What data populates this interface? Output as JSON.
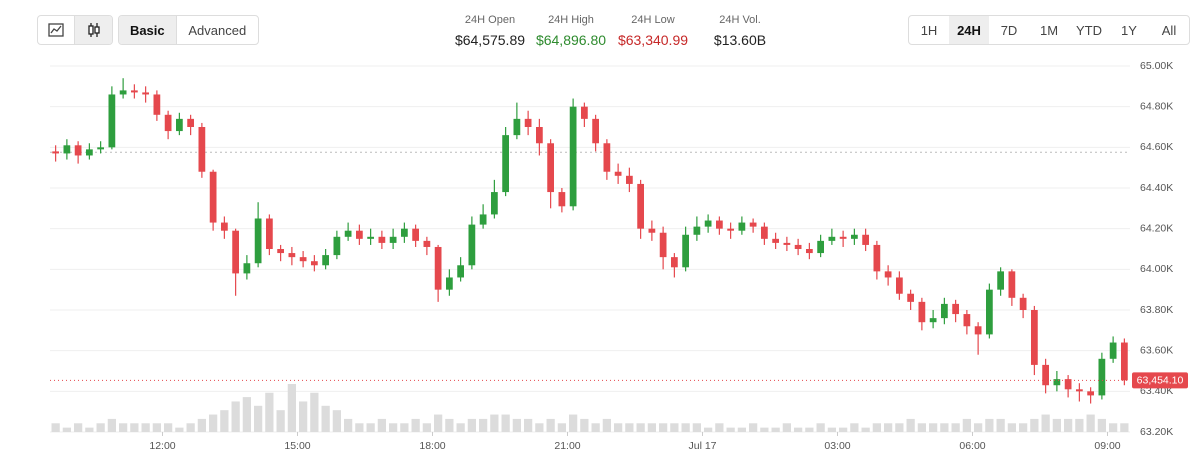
{
  "tabs": {
    "items": [
      "Basic",
      "Advanced"
    ],
    "active": 0
  },
  "stats": [
    {
      "label": "24H Open",
      "value": "$64,575.89"
    },
    {
      "label": "24H High",
      "value": "$64,896.80",
      "color": "#2e8b2e"
    },
    {
      "label": "24H Low",
      "value": "$63,340.99",
      "color": "#c62828"
    },
    {
      "label": "24H Vol.",
      "value": "$13.60B"
    }
  ],
  "timeframes": {
    "items": [
      "1H",
      "24H",
      "7D",
      "1M",
      "YTD",
      "1Y",
      "All"
    ],
    "active": 1
  },
  "chart_data": {
    "type": "candlestick",
    "open": [
      64580,
      64570,
      64610,
      64560,
      64590,
      64600,
      64860,
      64880,
      64870,
      64860,
      64760,
      64680,
      64740,
      64700,
      64480,
      64230,
      64190,
      63980,
      64030,
      64250,
      64100,
      64080,
      64060,
      64040,
      64020,
      64070,
      64160,
      64190,
      64150,
      64160,
      64130,
      64160,
      64200,
      64140,
      64110,
      63900,
      63960,
      64020,
      64220,
      64270,
      64380,
      64660,
      64740,
      64700,
      64620,
      64380,
      64310,
      64800,
      64740,
      64620,
      64480,
      64460,
      64420,
      64200,
      64180,
      64060,
      64010,
      64170,
      64210,
      64240,
      64200,
      64190,
      64230,
      64210,
      64150,
      64130,
      64120,
      64100,
      64080,
      64140,
      64160,
      64150,
      64170,
      64120,
      63990,
      63960,
      63880,
      63840,
      63740,
      63760,
      63830,
      63780,
      63720,
      63680,
      63900,
      63990,
      63860,
      63800,
      63530,
      63430,
      63460,
      63410,
      63400,
      63380,
      63560,
      63640
    ],
    "high": [
      64610,
      64640,
      64630,
      64620,
      64630,
      64900,
      64940,
      64910,
      64900,
      64880,
      64780,
      64770,
      64760,
      64720,
      64490,
      64260,
      64200,
      64070,
      64330,
      64270,
      64120,
      64110,
      64090,
      64070,
      64100,
      64190,
      64230,
      64220,
      64200,
      64190,
      64200,
      64230,
      64220,
      64160,
      64120,
      64000,
      64060,
      64260,
      64320,
      64440,
      64700,
      64820,
      64780,
      64740,
      64640,
      64400,
      64840,
      64820,
      64760,
      64640,
      64520,
      64500,
      64440,
      64240,
      64210,
      64080,
      64210,
      64260,
      64270,
      64260,
      64230,
      64260,
      64250,
      64230,
      64180,
      64160,
      64150,
      64130,
      64170,
      64200,
      64190,
      64200,
      64200,
      64140,
      64020,
      63990,
      63900,
      63860,
      63800,
      63860,
      63850,
      63800,
      63740,
      63930,
      64010,
      64000,
      63880,
      63820,
      63560,
      63500,
      63480,
      63440,
      63420,
      63590,
      63670,
      63660
    ],
    "low": [
      64530,
      64540,
      64520,
      64540,
      64570,
      64590,
      64840,
      64840,
      64820,
      64730,
      64640,
      64660,
      64660,
      64450,
      64190,
      64150,
      63870,
      63950,
      64010,
      64070,
      64040,
      64020,
      64010,
      63990,
      64000,
      64050,
      64140,
      64120,
      64120,
      64100,
      64100,
      64130,
      64110,
      64070,
      63840,
      63870,
      63940,
      64000,
      64200,
      64250,
      64360,
      64640,
      64660,
      64560,
      64300,
      64280,
      64290,
      64700,
      64580,
      64440,
      64420,
      64380,
      64150,
      64140,
      64000,
      63960,
      63990,
      64140,
      64180,
      64170,
      64150,
      64170,
      64180,
      64120,
      64100,
      64090,
      64070,
      64050,
      64060,
      64120,
      64110,
      64120,
      64090,
      63950,
      63920,
      63850,
      63800,
      63700,
      63710,
      63730,
      63740,
      63680,
      63580,
      63660,
      63870,
      63820,
      63760,
      63480,
      63390,
      63400,
      63370,
      63350,
      63340,
      63360,
      63540,
      63430
    ],
    "close": [
      64570,
      64610,
      64560,
      64590,
      64600,
      64860,
      64880,
      64870,
      64860,
      64760,
      64680,
      64740,
      64700,
      64480,
      64230,
      64190,
      63980,
      64030,
      64250,
      64100,
      64080,
      64060,
      64040,
      64020,
      64070,
      64160,
      64190,
      64150,
      64160,
      64130,
      64160,
      64200,
      64140,
      64110,
      63900,
      63960,
      64020,
      64220,
      64270,
      64380,
      64660,
      64740,
      64700,
      64620,
      64380,
      64310,
      64800,
      64740,
      64620,
      64480,
      64460,
      64420,
      64200,
      64180,
      64060,
      64010,
      64170,
      64210,
      64240,
      64200,
      64190,
      64230,
      64210,
      64150,
      64130,
      64120,
      64100,
      64080,
      64140,
      64160,
      64150,
      64170,
      64120,
      63990,
      63960,
      63880,
      63840,
      63740,
      63760,
      63830,
      63780,
      63720,
      63680,
      63900,
      63990,
      63860,
      63800,
      63530,
      63430,
      63460,
      63410,
      63400,
      63380,
      63560,
      63640,
      63454.1
    ],
    "volume": [
      2,
      1,
      2,
      1,
      2,
      3,
      2,
      2,
      2,
      2,
      2,
      1,
      2,
      3,
      4,
      5,
      7,
      8,
      6,
      9,
      5,
      11,
      7,
      9,
      6,
      5,
      3,
      2,
      2,
      3,
      2,
      2,
      3,
      2,
      4,
      3,
      2,
      3,
      3,
      4,
      4,
      3,
      3,
      2,
      3,
      2,
      4,
      3,
      2,
      3,
      2,
      2,
      2,
      2,
      2,
      2,
      2,
      2,
      1,
      2,
      1,
      1,
      2,
      1,
      1,
      2,
      1,
      1,
      2,
      1,
      1,
      2,
      1,
      2,
      2,
      2,
      3,
      2,
      2,
      2,
      2,
      3,
      2,
      3,
      3,
      2,
      2,
      3,
      4,
      3,
      3,
      3,
      4,
      3,
      2,
      2
    ],
    "up_color": "#2e9e3e",
    "down_color": "#e5484d",
    "volume_color": "#dcdcdc",
    "open_line": 64575.89,
    "last_price": {
      "value": 63454.1,
      "label": "63,454.10"
    },
    "xlim": [
      0,
      96
    ],
    "xticks": [
      {
        "value": 10,
        "label": "12:00"
      },
      {
        "value": 22,
        "label": "15:00"
      },
      {
        "value": 34,
        "label": "18:00"
      },
      {
        "value": 46,
        "label": "21:00"
      },
      {
        "value": 58,
        "label": "Jul 17"
      },
      {
        "value": 70,
        "label": "03:00"
      },
      {
        "value": 82,
        "label": "06:00"
      },
      {
        "value": 94,
        "label": "09:00"
      }
    ],
    "ylim": [
      63200,
      65000
    ],
    "yticks": [
      {
        "value": 63200,
        "label": "63.20K"
      },
      {
        "value": 63400,
        "label": "63.40K"
      },
      {
        "value": 63600,
        "label": "63.60K"
      },
      {
        "value": 63800,
        "label": "63.80K"
      },
      {
        "value": 64000,
        "label": "64.00K"
      },
      {
        "value": 64200,
        "label": "64.20K"
      },
      {
        "value": 64400,
        "label": "64.40K"
      },
      {
        "value": 64600,
        "label": "64.60K"
      },
      {
        "value": 64800,
        "label": "64.80K"
      },
      {
        "value": 65000,
        "label": "65.00K"
      }
    ],
    "grid": true
  }
}
